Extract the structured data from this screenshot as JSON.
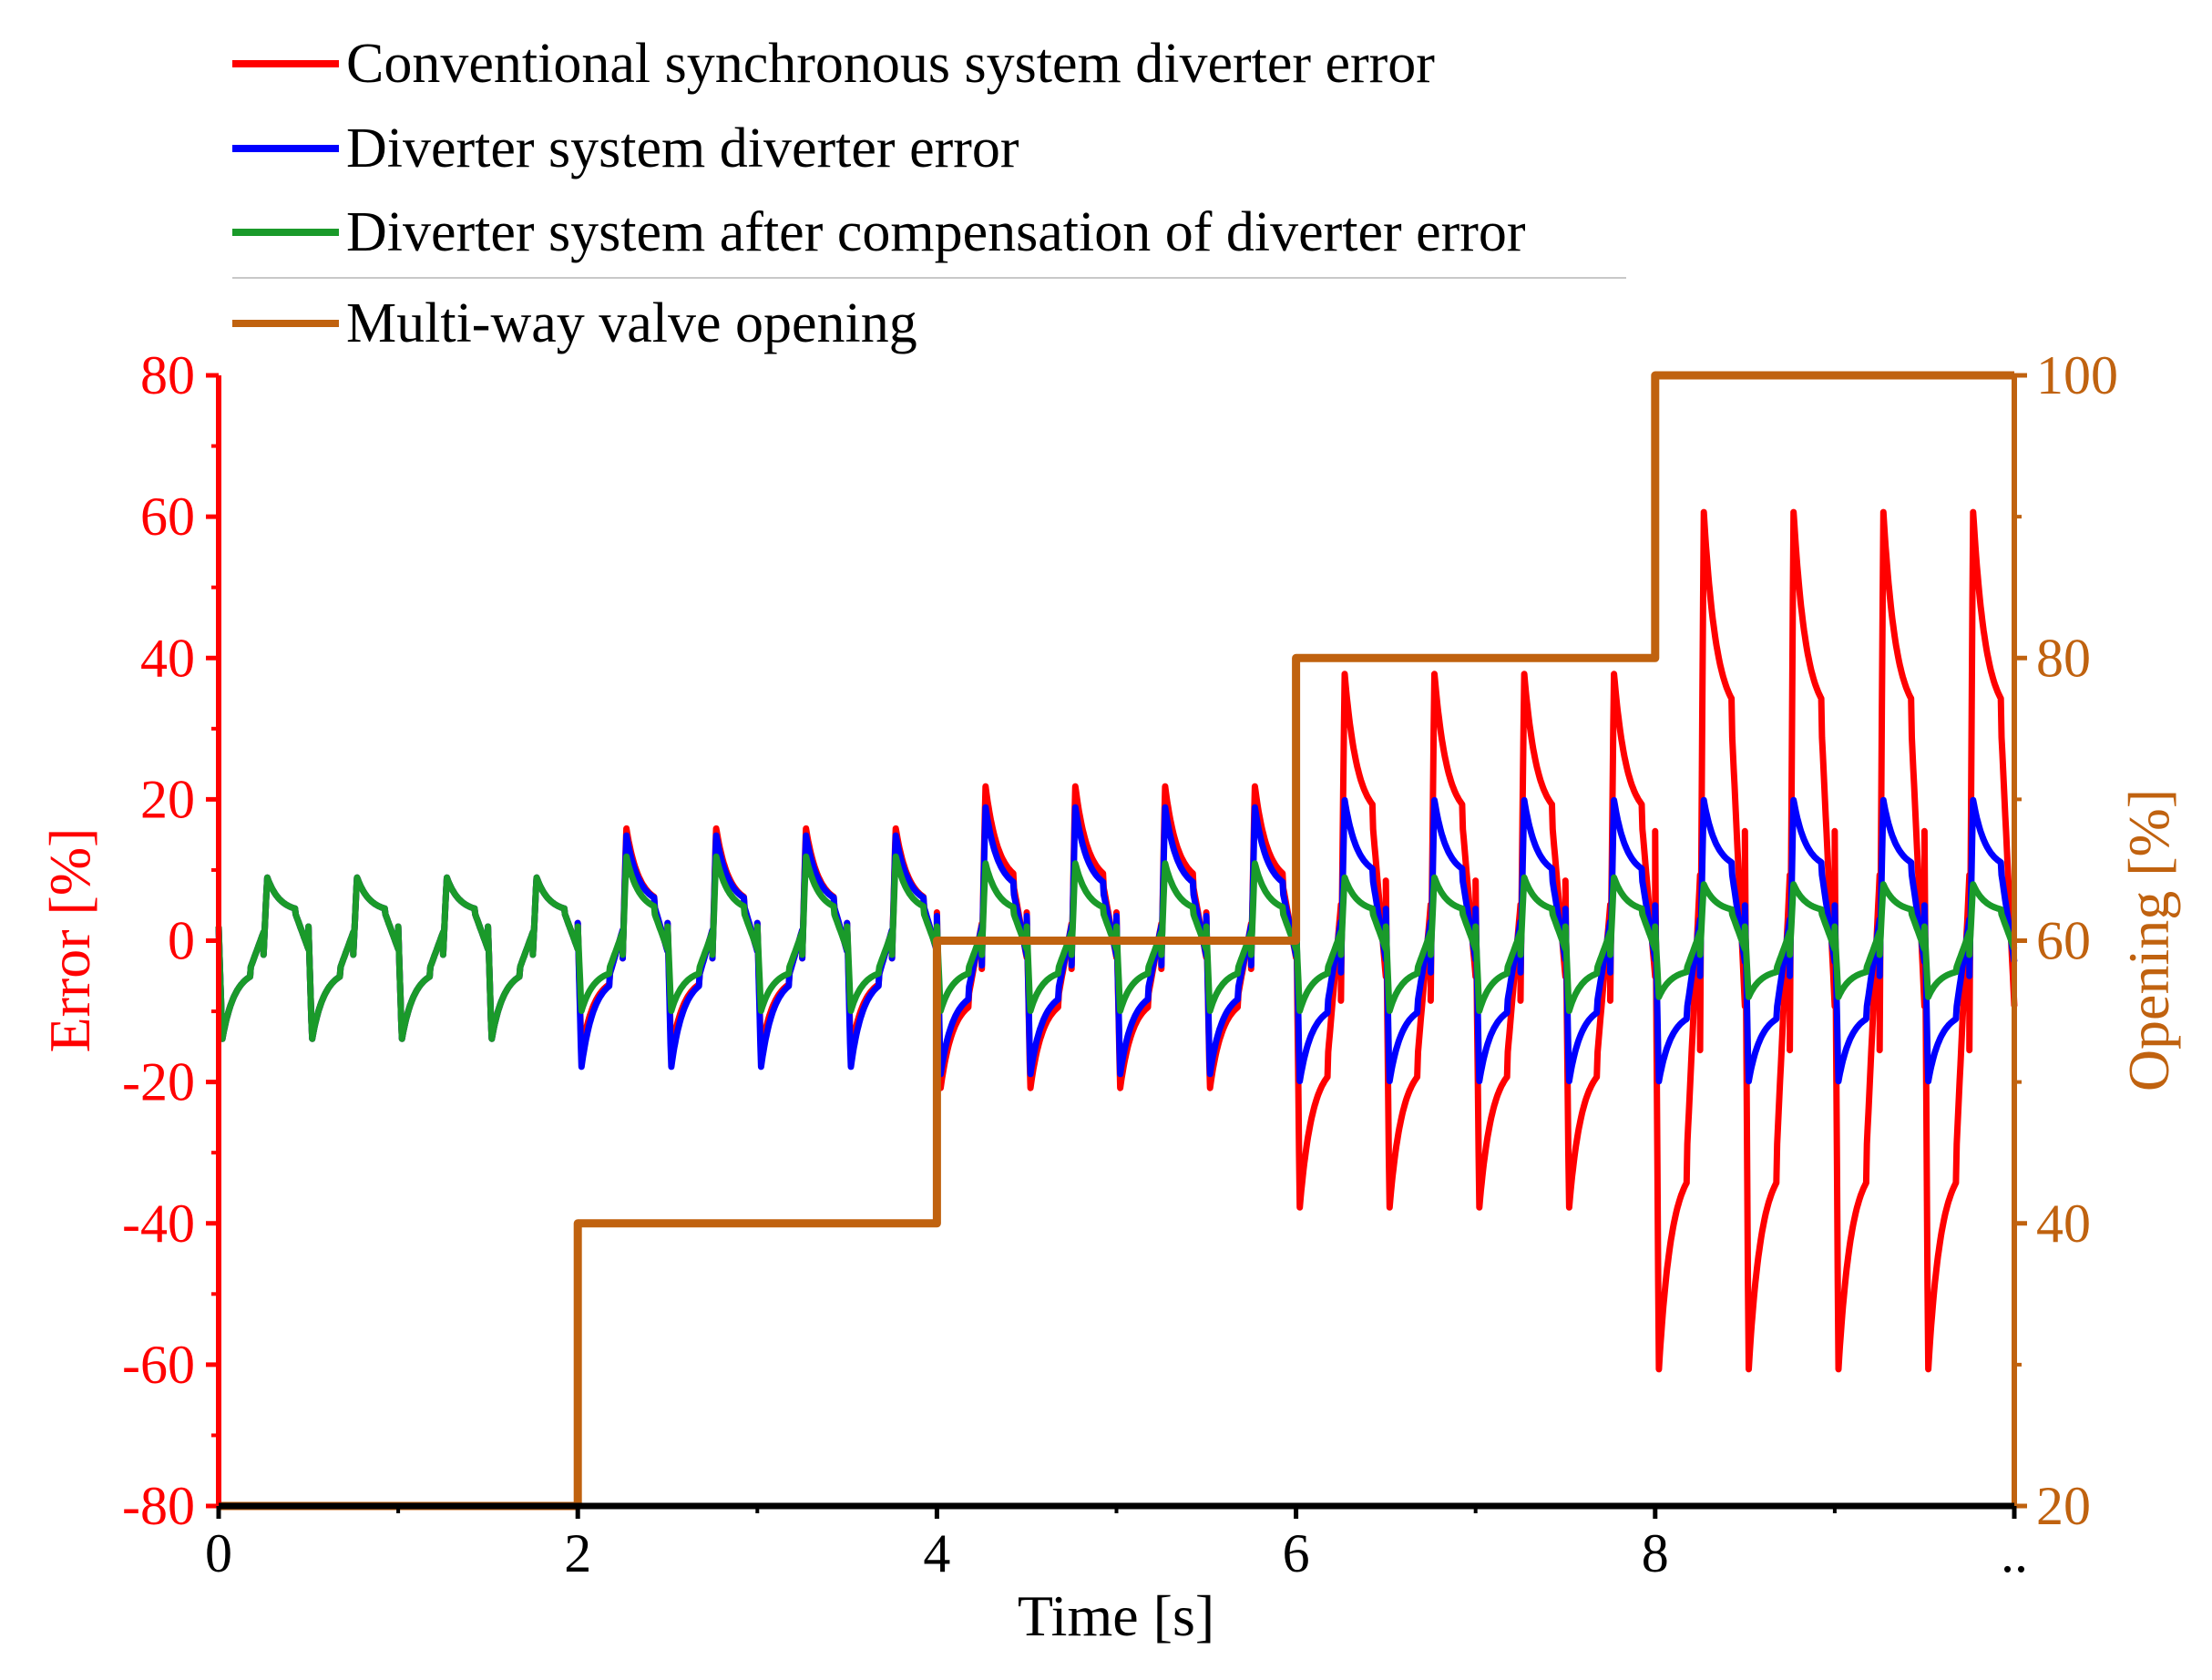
{
  "chart_data": {
    "type": "line",
    "title": "",
    "xlabel": "Time [s]",
    "ylabel_left": "Error [%]",
    "ylabel_right": "Opening [%]",
    "xlim": [
      0,
      10
    ],
    "ylim_left": [
      -80,
      80
    ],
    "ylim_right": [
      20,
      100
    ],
    "x_ticks": [
      "0",
      "2",
      "4",
      "6",
      "8",
      ".."
    ],
    "y_left_ticks": [
      "80",
      "60",
      "40",
      "20",
      "0",
      "-20",
      "-40",
      "-60",
      "-80"
    ],
    "y_right_ticks": [
      "100",
      "80",
      "60",
      "40",
      "20"
    ],
    "grid": false,
    "legend": {
      "placement": "top-left",
      "entries": [
        "Conventional synchronous system diverter error",
        "Diverter system diverter error",
        "Diverter system after compensation of diverter error",
        "Multi-way valve opening"
      ]
    },
    "series": [
      {
        "name": "Conventional synchronous system diverter error",
        "color": "#ff0000",
        "axis": "left",
        "pulse_period_s": 0.5,
        "segments": [
          {
            "t_start": 0,
            "t_end": 2,
            "peak_pos": 9,
            "peak_neg": -14,
            "plateau": 4
          },
          {
            "t_start": 2,
            "t_end": 4,
            "peak_pos": 16,
            "peak_neg": -16,
            "plateau": 5
          },
          {
            "t_start": 4,
            "t_end": 6,
            "peak_pos": 22,
            "peak_neg": -21,
            "plateau": 8
          },
          {
            "t_start": 6,
            "t_end": 8,
            "peak_pos": 38,
            "peak_neg": -38,
            "plateau": 17
          },
          {
            "t_start": 8,
            "t_end": 10,
            "peak_pos": 61,
            "peak_neg": -61,
            "plateau": 31
          }
        ]
      },
      {
        "name": "Diverter system diverter error",
        "color": "#0000ff",
        "axis": "left",
        "pulse_period_s": 0.5,
        "segments": [
          {
            "t_start": 0,
            "t_end": 2,
            "peak_pos": 9,
            "peak_neg": -14,
            "plateau": 4
          },
          {
            "t_start": 2,
            "t_end": 4,
            "peak_pos": 15,
            "peak_neg": -18,
            "plateau": 5
          },
          {
            "t_start": 4,
            "t_end": 6,
            "peak_pos": 19,
            "peak_neg": -19,
            "plateau": 7
          },
          {
            "t_start": 6,
            "t_end": 8,
            "peak_pos": 20,
            "peak_neg": -20,
            "plateau": 9
          },
          {
            "t_start": 8,
            "t_end": 10,
            "peak_pos": 20,
            "peak_neg": -20,
            "plateau": 10
          }
        ]
      },
      {
        "name": "Diverter system after compensation of diverter error",
        "color": "#1a9a2a",
        "axis": "left",
        "pulse_period_s": 0.5,
        "segments": [
          {
            "t_start": 0,
            "t_end": 2,
            "peak_pos": 9,
            "peak_neg": -14,
            "plateau": 4
          },
          {
            "t_start": 2,
            "t_end": 4,
            "peak_pos": 12,
            "peak_neg": -10,
            "plateau": 4
          },
          {
            "t_start": 4,
            "t_end": 6,
            "peak_pos": 11,
            "peak_neg": -10,
            "plateau": 4
          },
          {
            "t_start": 6,
            "t_end": 8,
            "peak_pos": 9,
            "peak_neg": -10,
            "plateau": 4
          },
          {
            "t_start": 8,
            "t_end": 10,
            "peak_pos": 8,
            "peak_neg": -8,
            "plateau": 4
          }
        ]
      },
      {
        "name": "Multi-way valve opening",
        "color": "#c0620f",
        "axis": "right",
        "x": [
          0,
          2,
          2,
          4,
          4,
          6,
          6,
          8,
          8,
          10
        ],
        "y": [
          20,
          20,
          40,
          40,
          60,
          60,
          80,
          80,
          100,
          100
        ]
      }
    ],
    "colors": {
      "left_axis": "#ff0000",
      "right_axis": "#c0620f",
      "x_axis": "#000000"
    }
  }
}
